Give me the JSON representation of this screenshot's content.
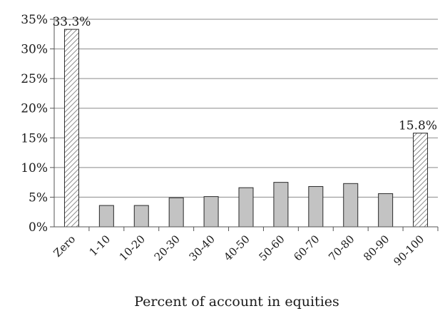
{
  "chart_data": {
    "type": "bar",
    "title": "",
    "xlabel": "Percent of account in equities",
    "ylabel": "",
    "categories": [
      "Zero",
      "1-10",
      "10-20",
      "20-30",
      "30-40",
      "40-50",
      "50-60",
      "60-70",
      "70-80",
      "80-90",
      "90-100"
    ],
    "values": [
      33.3,
      3.6,
      3.6,
      4.9,
      5.1,
      6.6,
      7.5,
      6.8,
      7.3,
      5.6,
      15.8
    ],
    "data_labels": [
      {
        "index": 0,
        "text": "33.3%"
      },
      {
        "index": 10,
        "text": "15.8%"
      }
    ],
    "highlight_indices": [
      0,
      10
    ],
    "ylim": [
      0,
      35
    ],
    "yticks": [
      0,
      5,
      10,
      15,
      20,
      25,
      30,
      35
    ],
    "ytick_labels": [
      "0%",
      "5%",
      "10%",
      "15%",
      "20%",
      "25%",
      "30%",
      "35%"
    ],
    "grid": true,
    "legend": "none",
    "colors": {
      "bar_fill": "#c3c3c3",
      "highlight_hatch": "#8c8c8c",
      "bar_stroke": "#2a2a2a",
      "grid": "#8a8a8a",
      "axis": "#555555"
    }
  }
}
